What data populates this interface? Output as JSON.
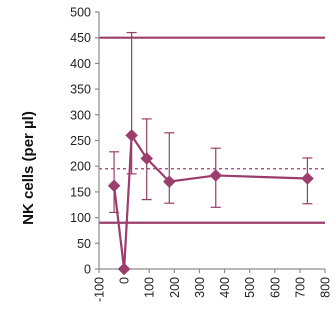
{
  "chart_data": {
    "type": "line",
    "title": "",
    "xlabel": "",
    "ylabel": "NK cells (per µl)",
    "xlim": [
      -100,
      800
    ],
    "ylim": [
      0,
      500
    ],
    "x_ticks": [
      "-100",
      "0",
      "100",
      "200",
      "300",
      "400",
      "500",
      "600",
      "700",
      "800"
    ],
    "y_ticks": [
      "0",
      "50",
      "100",
      "150",
      "200",
      "250",
      "300",
      "350",
      "400",
      "450",
      "500"
    ],
    "grid": false,
    "series": [
      {
        "x": [
          -40,
          0,
          30,
          90,
          180,
          365,
          730
        ],
        "y": [
          162,
          0,
          260,
          215,
          170,
          182,
          176
        ],
        "error_low": [
          110,
          0,
          185,
          135,
          128,
          120,
          127
        ],
        "error_high": [
          228,
          0,
          460,
          292,
          265,
          235,
          216
        ]
      }
    ],
    "reference_lines": [
      {
        "y": 450,
        "style": "solid"
      },
      {
        "y": 195,
        "style": "dashed"
      },
      {
        "y": 90,
        "style": "solid"
      }
    ],
    "colors": {
      "series": "#9b3d6d",
      "axis": "#8c8c8c",
      "text": "#222222"
    }
  }
}
